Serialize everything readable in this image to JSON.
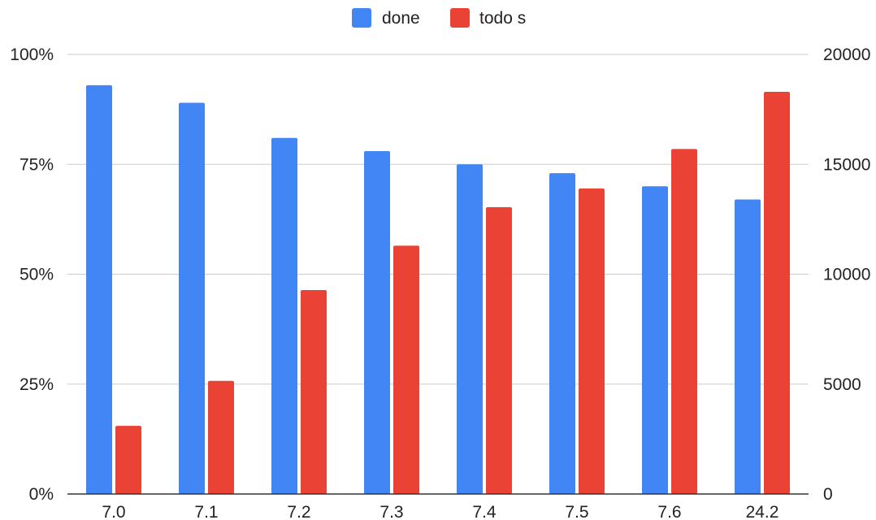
{
  "chart_data": {
    "type": "bar",
    "categories": [
      "7.0",
      "7.1",
      "7.2",
      "7.3",
      "7.4",
      "7.5",
      "7.6",
      "24.2"
    ],
    "series": [
      {
        "name": "done",
        "axis": "left",
        "color": "#4285f4",
        "values": [
          0.93,
          0.89,
          0.81,
          0.78,
          0.75,
          0.73,
          0.7,
          0.67
        ]
      },
      {
        "name": "todo s",
        "axis": "right",
        "color": "#ea4335",
        "values": [
          3100,
          5150,
          9280,
          11300,
          13050,
          13900,
          15700,
          18300
        ]
      }
    ],
    "y_left": {
      "min": 0,
      "max": 1,
      "ticks": [
        0,
        0.25,
        0.5,
        0.75,
        1
      ],
      "tick_labels": [
        "0%",
        "25%",
        "50%",
        "75%",
        "100%"
      ]
    },
    "y_right": {
      "min": 0,
      "max": 20000,
      "ticks": [
        0,
        5000,
        10000,
        15000,
        20000
      ],
      "tick_labels": [
        "0",
        "5000",
        "10000",
        "15000",
        "20000"
      ]
    },
    "grid": true,
    "legend_position": "top-center",
    "title": "",
    "xlabel": "",
    "ylabel": ""
  }
}
